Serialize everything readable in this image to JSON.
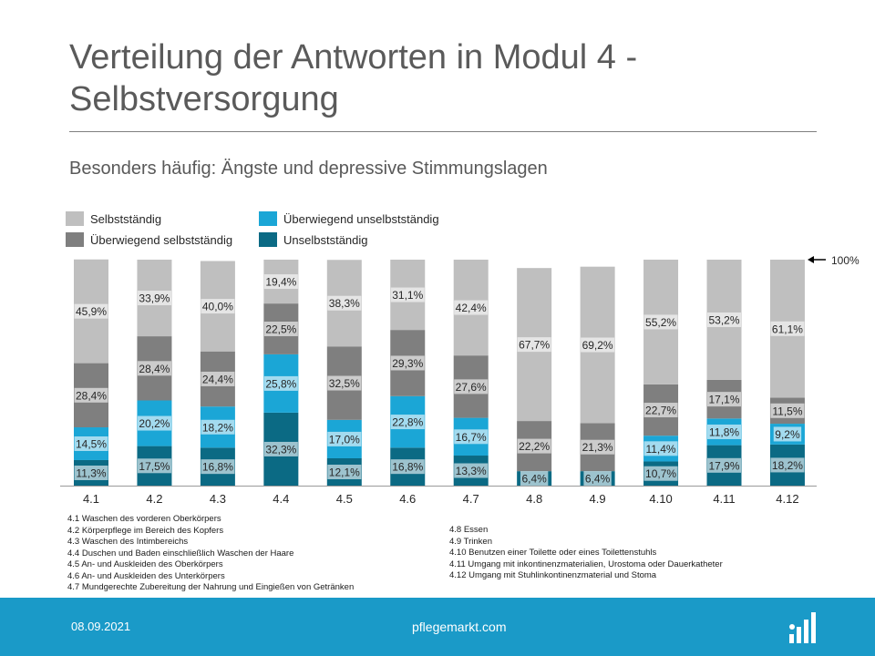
{
  "title": "Verteilung der Antworten in Modul 4 - Selbstversorgung",
  "subtitle": "Besonders häufig: Ängste und depressive Stimmungslagen",
  "reference_label": "100%",
  "legend": [
    {
      "label": "Selbstständig",
      "color": "#bfbfbf"
    },
    {
      "label": "Überwiegend selbstständig",
      "color": "#7f7f7f"
    },
    {
      "label": "Überwiegend unselbstständig",
      "color": "#1ba6d6"
    },
    {
      "label": "Unselbstständig",
      "color": "#0b6a84"
    }
  ],
  "chart_data": {
    "type": "bar",
    "stacked": true,
    "categories": [
      "4.1",
      "4.2",
      "4.3",
      "4.4",
      "4.5",
      "4.6",
      "4.7",
      "4.8",
      "4.9",
      "4.10",
      "4.11",
      "4.12"
    ],
    "series": [
      {
        "name": "Unselbstständig",
        "color": "#0b6a84",
        "values": [
          11.3,
          17.5,
          16.8,
          32.3,
          12.1,
          16.8,
          13.3,
          6.4,
          6.4,
          10.7,
          17.9,
          18.2
        ],
        "labels": [
          "11,3%",
          "17,5%",
          "16,8%",
          "32,3%",
          "12,1%",
          "16,8%",
          "13,3%",
          "6,4%",
          "6,4%",
          "10,7%",
          "17,9%",
          "18,2%"
        ]
      },
      {
        "name": "Überwiegend unselbstständig",
        "color": "#1ba6d6",
        "values": [
          14.5,
          20.2,
          18.2,
          25.8,
          17.0,
          22.8,
          16.7,
          0,
          0,
          11.4,
          11.8,
          9.2
        ],
        "labels": [
          "14,5%",
          "20,2%",
          "18,2%",
          "25,8%",
          "17,0%",
          "22,8%",
          "16,7%",
          "",
          "",
          "11,4%",
          "11,8%",
          "9,2%"
        ]
      },
      {
        "name": "Überwiegend selbstständig",
        "color": "#7f7f7f",
        "values": [
          28.4,
          28.4,
          24.4,
          22.5,
          32.5,
          29.3,
          27.6,
          22.2,
          21.3,
          22.7,
          17.1,
          11.5
        ],
        "labels": [
          "28,4%",
          "28,4%",
          "24,4%",
          "22,5%",
          "32,5%",
          "29,3%",
          "27,6%",
          "22,2%",
          "21,3%",
          "22,7%",
          "17,1%",
          "11,5%"
        ]
      },
      {
        "name": "Selbstständig",
        "color": "#bfbfbf",
        "values": [
          45.9,
          33.9,
          40.0,
          19.4,
          38.3,
          31.1,
          42.4,
          67.7,
          69.2,
          55.2,
          53.2,
          61.1
        ],
        "labels": [
          "45,9%",
          "33,9%",
          "40,0%",
          "19,4%",
          "38,3%",
          "31,1%",
          "42,4%",
          "67,7%",
          "69,2%",
          "55,2%",
          "53,2%",
          "61,1%"
        ]
      }
    ],
    "ylim": [
      0,
      100
    ],
    "grid": false
  },
  "notes_left": [
    "4.1 Waschen des vorderen Oberkörpers",
    "4.2 Körperpflege im Bereich des Kopfers",
    "4.3 Waschen des Intimbereichs",
    "4.4 Duschen und Baden einschließlich Waschen der Haare",
    "4.5 An- und Auskleiden des Oberkörpers",
    "4.6 An- und Auskleiden des Unterkörpers",
    "4.7 Mundgerechte Zubereitung der Nahrung und Eingießen von Getränken"
  ],
  "notes_right": [
    "4.8 Essen",
    "4.9 Trinken",
    "4.10 Benutzen einer Toilette oder eines Toilettenstuhls",
    "4.11 Umgang mit inkontinenzmaterialien, Urostoma oder Dauerkatheter",
    "4.12 Umgang mit Stuhlinkontinenzmaterial und Stoma"
  ],
  "footer": {
    "date": "08.09.2021",
    "brand": "pflegemarkt.com"
  }
}
